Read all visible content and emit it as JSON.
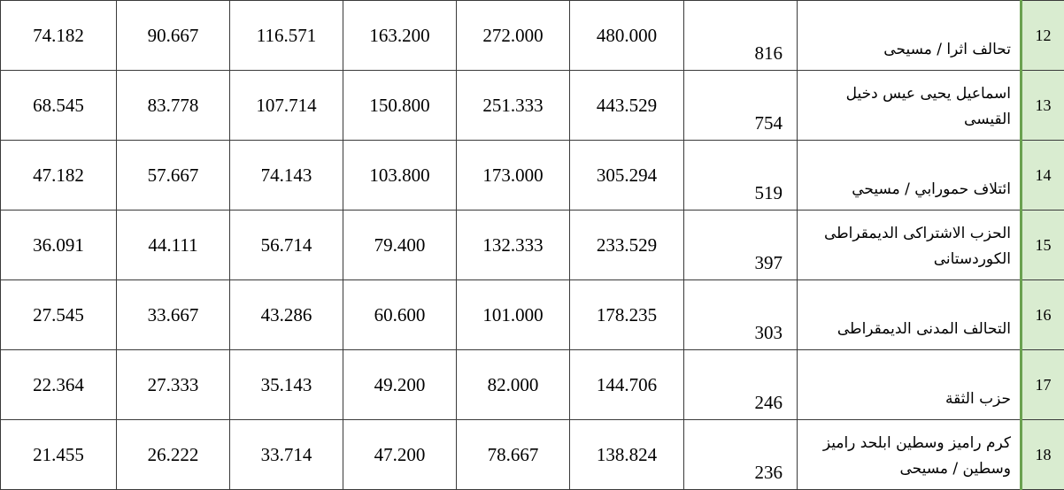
{
  "rows": [
    {
      "index": "12",
      "name": "تحالف اثرا / مسيحى",
      "votes": "816",
      "d2": "480.000",
      "d3": "272.000",
      "d4": "163.200",
      "d5": "116.571",
      "d6": "90.667",
      "d7": "74.182"
    },
    {
      "index": "13",
      "name": "اسماعيل يحيى عيس دخيل القيسى",
      "votes": "754",
      "d2": "443.529",
      "d3": "251.333",
      "d4": "150.800",
      "d5": "107.714",
      "d6": "83.778",
      "d7": "68.545"
    },
    {
      "index": "14",
      "name": "ائتلاف حمورابي / مسيحي",
      "votes": "519",
      "d2": "305.294",
      "d3": "173.000",
      "d4": "103.800",
      "d5": "74.143",
      "d6": "57.667",
      "d7": "47.182"
    },
    {
      "index": "15",
      "name": "الحزب الاشتراكى الديمقراطى الكوردستانى",
      "votes": "397",
      "d2": "233.529",
      "d3": "132.333",
      "d4": "79.400",
      "d5": "56.714",
      "d6": "44.111",
      "d7": "36.091"
    },
    {
      "index": "16",
      "name": "التحالف المدنى الديمقراطى",
      "votes": "303",
      "d2": "178.235",
      "d3": "101.000",
      "d4": "60.600",
      "d5": "43.286",
      "d6": "33.667",
      "d7": "27.545"
    },
    {
      "index": "17",
      "name": "حزب الثقة",
      "votes": "246",
      "d2": "144.706",
      "d3": "82.000",
      "d4": "49.200",
      "d5": "35.143",
      "d6": "27.333",
      "d7": "22.364"
    },
    {
      "index": "18",
      "name": "كرم راميز وسطين ابلحد راميز وسطين / مسيحى",
      "votes": "236",
      "d2": "138.824",
      "d3": "78.667",
      "d4": "47.200",
      "d5": "33.714",
      "d6": "26.222",
      "d7": "21.455"
    }
  ],
  "colors": {
    "index_fill": "#d9ecd0",
    "index_border": "#6aa150",
    "grid": "#3a3a3a"
  }
}
